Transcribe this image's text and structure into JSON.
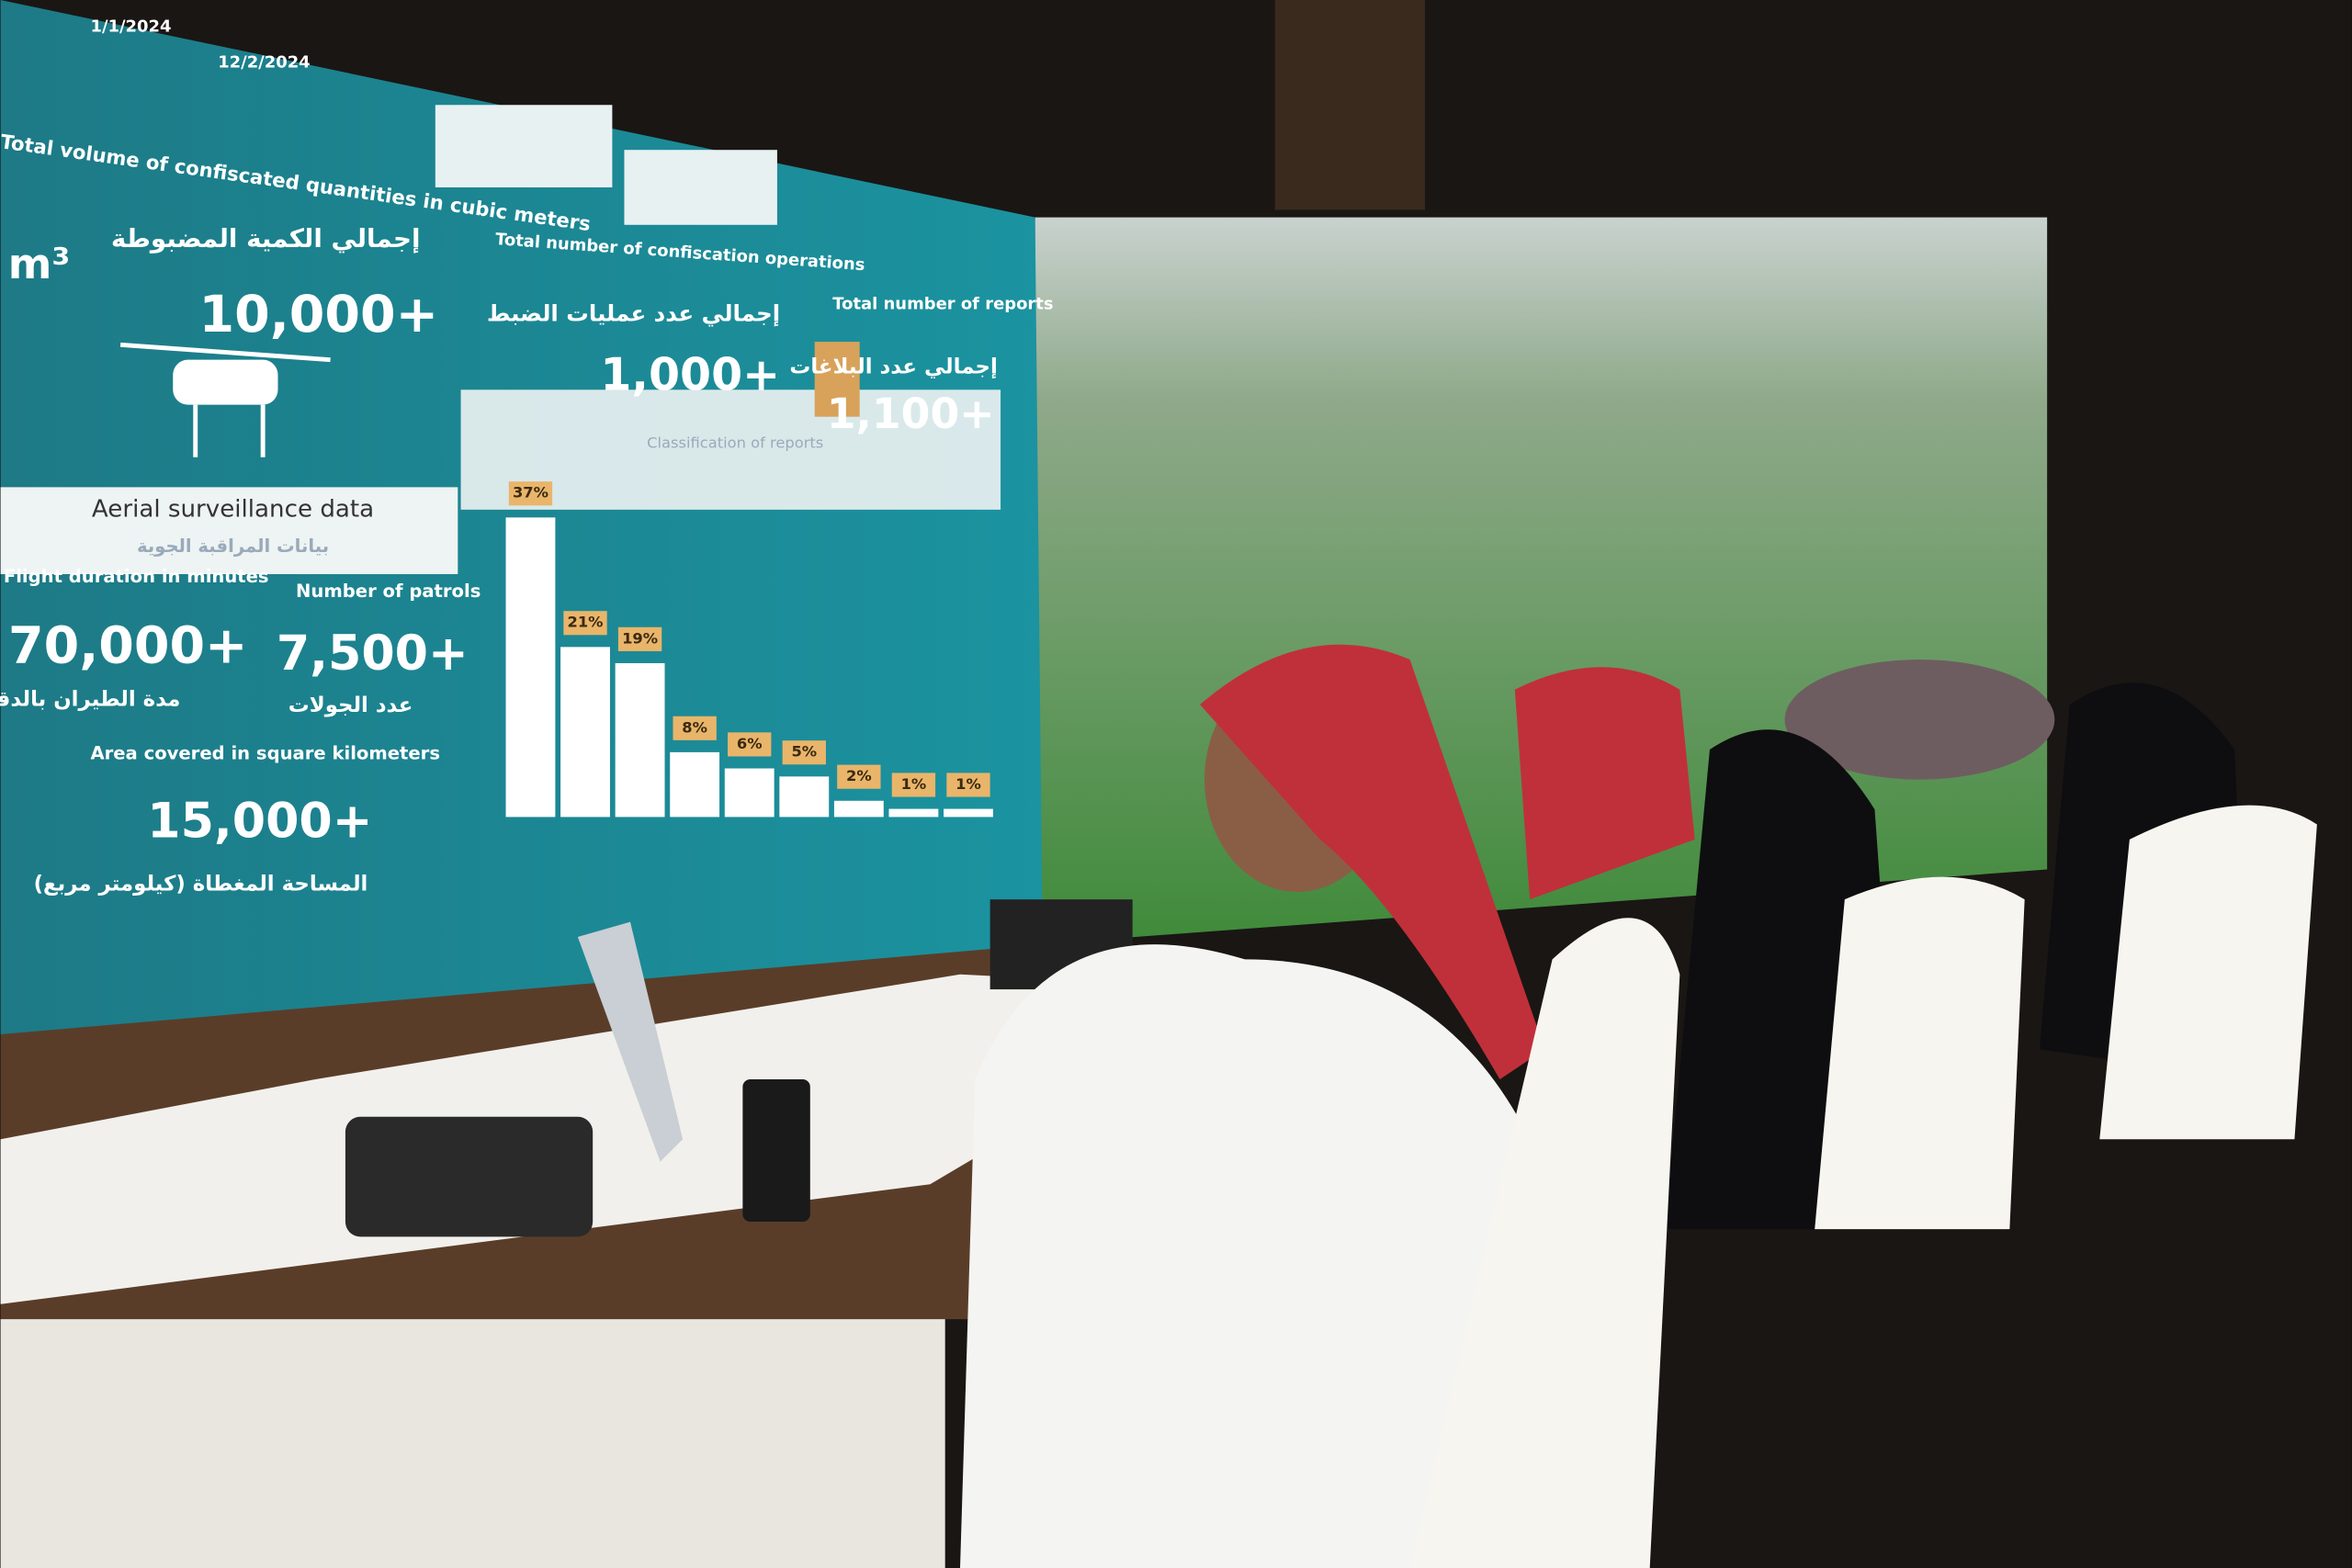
{
  "dashboard": {
    "date_from": "1/1/2024",
    "date_to": "12/2/2024",
    "volume_title": "Total volume of confiscated quantities in cubic meters",
    "volume_unit": "m³",
    "volume_label_ar": "إجمالي الكمية المضبوطة",
    "volume_value": "10,000+",
    "operations_title": "Total number of confiscation operations",
    "operations_label_ar": "إجمالي عدد عمليات الضبط",
    "operations_value": "1,000+",
    "reports_title": "Total number of reports",
    "reports_label_ar": "إجمالي عدد البلاغات",
    "reports_value": "1,100+",
    "aerial_title": "Aerial surveillance data",
    "aerial_title_ar": "بيانات المراقبة الجوية",
    "flight_title": "Flight duration in minutes",
    "flight_value": "70,000+",
    "flight_label_ar": "مدة الطيران بالدقائق",
    "patrols_title": "Number of patrols",
    "patrols_value": "7,500+",
    "patrols_label_ar": "عدد الجولات",
    "area_title": "Area covered in square kilometers",
    "area_value": "15,000+",
    "area_label_ar": "المساحة المغطاة (كيلومتر مربع)",
    "classification_title": "Classification of reports",
    "chart_data": {
      "type": "bar",
      "values": [
        37,
        21,
        19,
        8,
        6,
        5,
        2,
        1,
        1
      ],
      "value_labels": [
        "37%",
        "21%",
        "19%",
        "8%",
        "6%",
        "5%",
        "2%",
        "1%",
        "1%"
      ],
      "color": "#ffffff"
    }
  }
}
